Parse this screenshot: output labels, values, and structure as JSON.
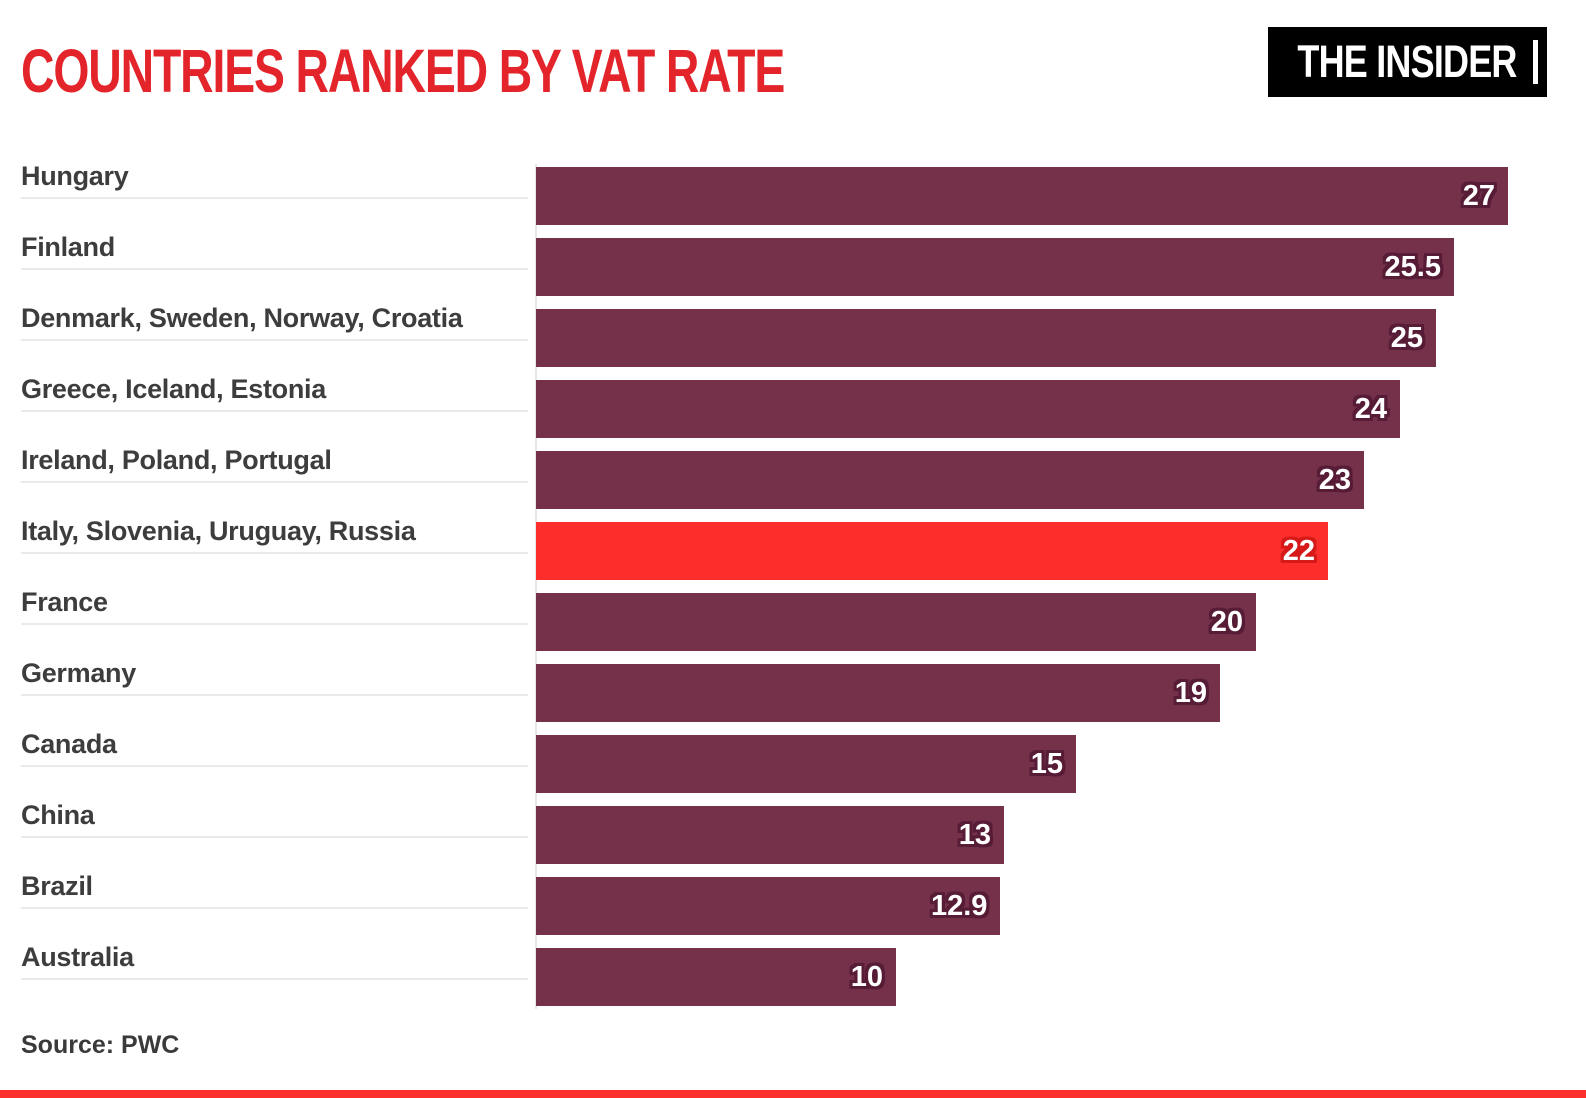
{
  "header": {
    "title": "COUNTRIES RANKED BY VAT RATE",
    "logo_text": "THE INSIDER"
  },
  "footer": {
    "source": "Source: PWC"
  },
  "colors": {
    "title_red": "#e3242b",
    "bar_default": "#75304a",
    "bar_highlight": "#fc2e2b",
    "value_outline_default": "#571c36",
    "value_outline_highlight": "#d61a1a",
    "label_text": "#3d3d3d",
    "underline_gray": "#eaeaea",
    "bottom_strip_red": "#fb2f2b"
  },
  "chart_data": {
    "type": "bar",
    "orientation": "horizontal",
    "title": "COUNTRIES RANKED BY VAT RATE",
    "categories": [
      "Hungary",
      "Finland",
      "Denmark, Sweden, Norway, Croatia",
      "Greece, Iceland, Estonia",
      "Ireland, Poland, Portugal",
      "Italy, Slovenia, Uruguay, Russia",
      "France",
      "Germany",
      "Canada",
      "China",
      "Brazil",
      "Australia"
    ],
    "values": [
      27,
      25.5,
      25,
      24,
      23,
      22,
      20,
      19,
      15,
      13,
      12.9,
      10
    ],
    "value_labels": [
      "27",
      "25.5",
      "25",
      "24",
      "23",
      "22",
      "20",
      "19",
      "15",
      "13",
      "12.9",
      "10"
    ],
    "highlighted_index": 5,
    "highlighted_category": "Italy, Slovenia, Uruguay, Russia",
    "xlabel": "",
    "ylabel": "",
    "xlim": [
      0,
      28.5
    ],
    "grid": false,
    "legend": false,
    "value_labels_position": "inside-right",
    "source": "Source: PWC"
  }
}
